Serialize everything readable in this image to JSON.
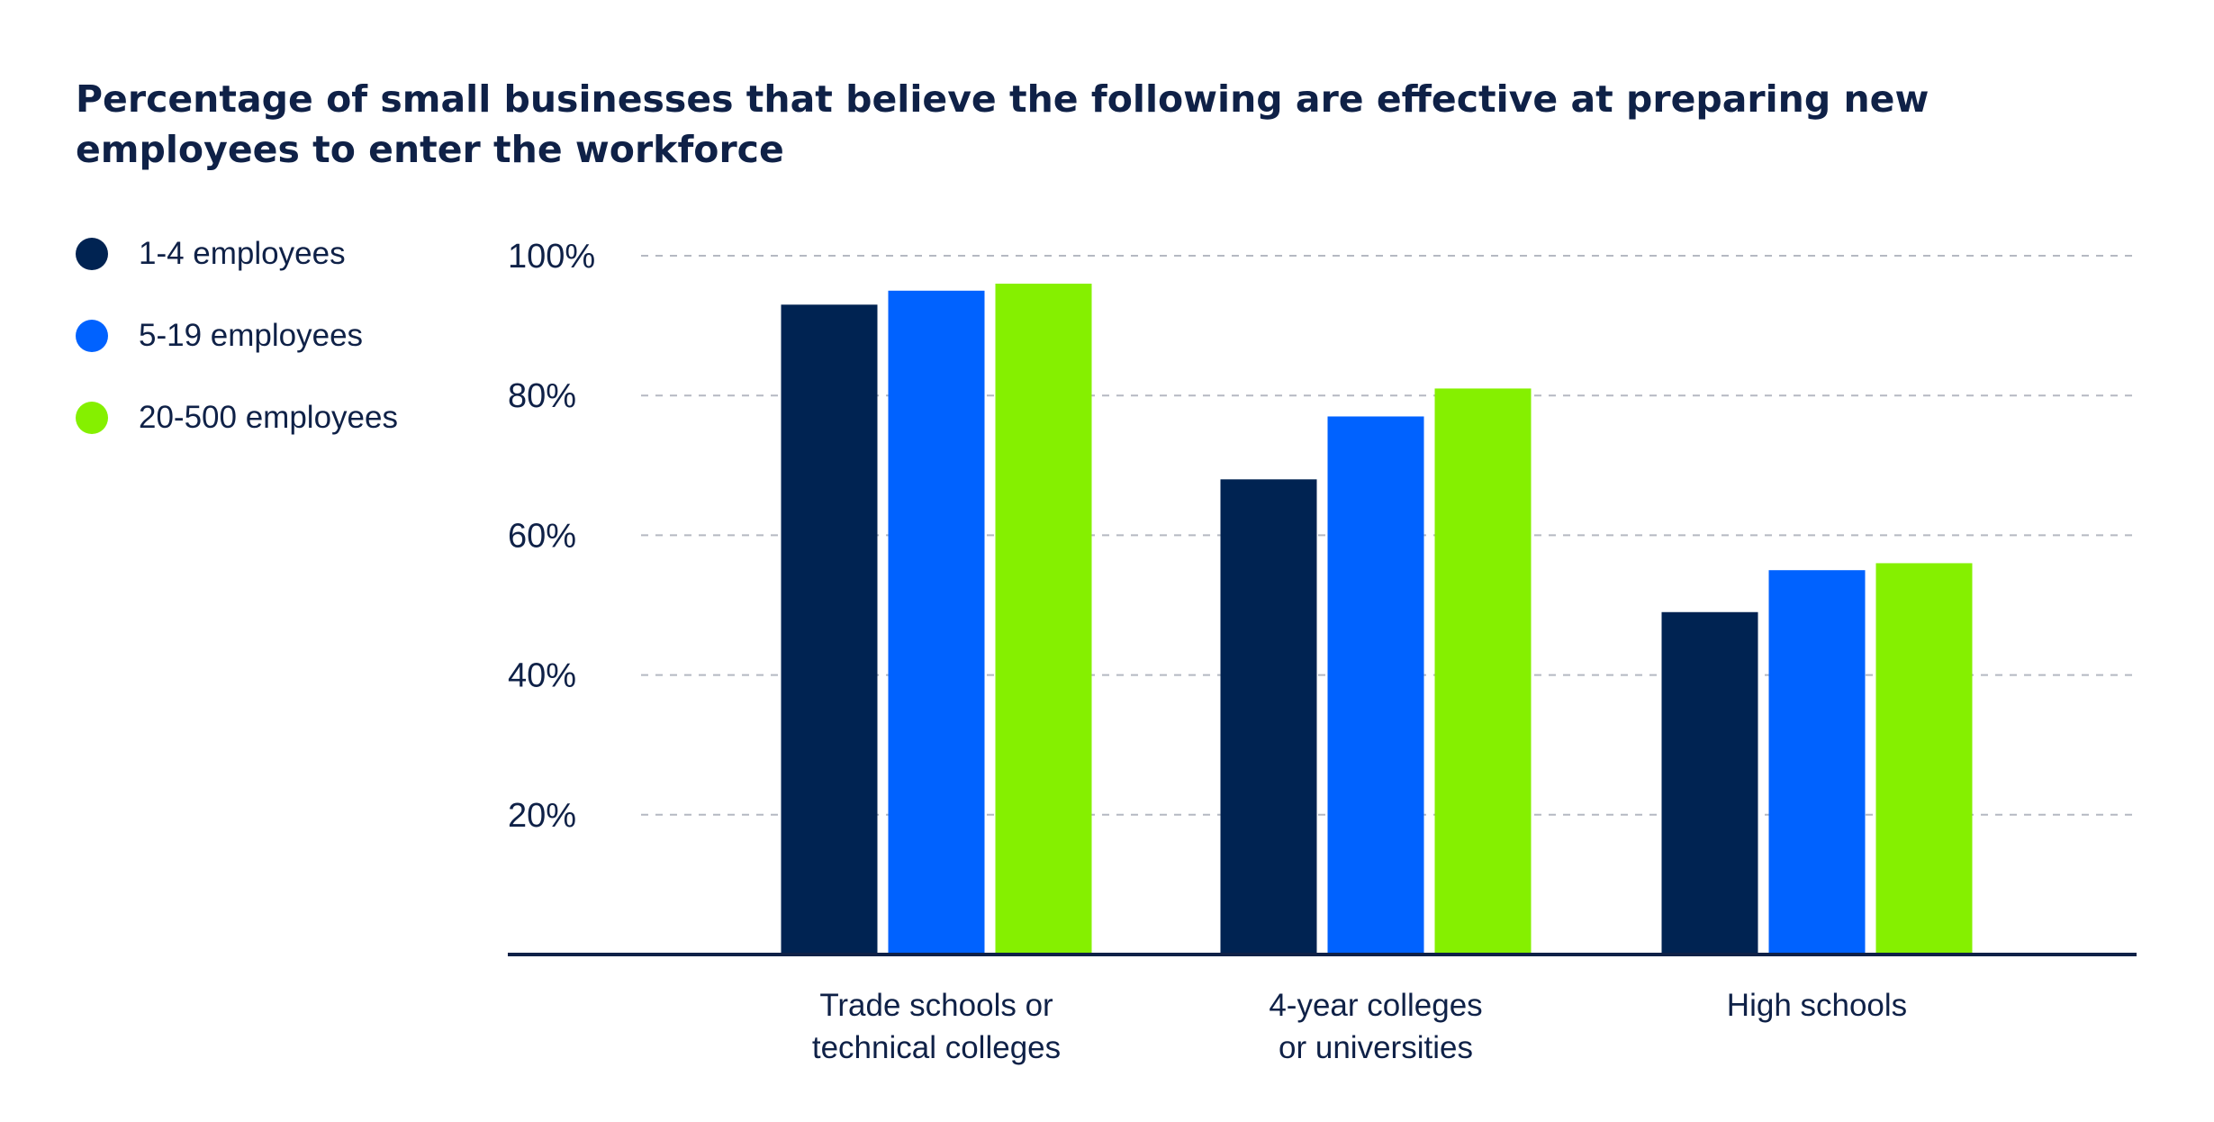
{
  "chart_data": {
    "type": "bar",
    "title": "Percentage of small businesses that believe the following are effective at preparing new employees to enter the workforce",
    "categories": [
      [
        "Trade schools or",
        "technical colleges"
      ],
      [
        "4-year colleges",
        "or universities"
      ],
      [
        "High schools"
      ]
    ],
    "series": [
      {
        "name": "1-4 employees",
        "color": "#002352",
        "values": [
          93,
          68,
          49
        ]
      },
      {
        "name": "5-19 employees",
        "color": "#0062ff",
        "values": [
          95,
          77,
          55
        ]
      },
      {
        "name": "20-500 employees",
        "color": "#85f000",
        "values": [
          96,
          81,
          56
        ]
      }
    ],
    "ylim": [
      0,
      100
    ],
    "yticks": [
      20,
      40,
      60,
      80,
      100
    ],
    "ytick_labels": [
      "20%",
      "40%",
      "60%",
      "80%",
      "100%"
    ],
    "grid": true,
    "legend_position": "left",
    "xlabel": "",
    "ylabel": ""
  }
}
